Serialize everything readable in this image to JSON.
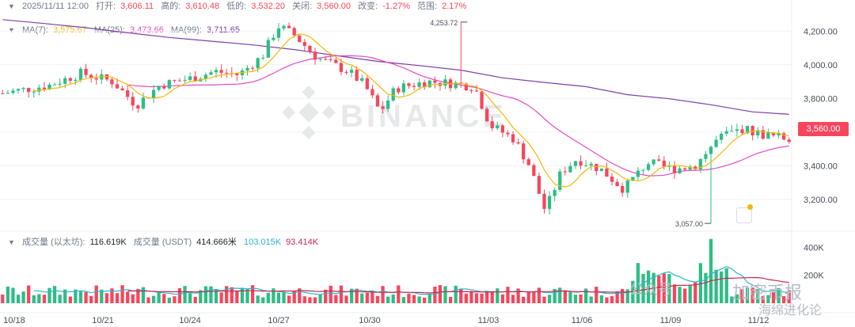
{
  "header": {
    "date": "2025/11/11 12:00",
    "open_label": "打开:",
    "open": "3,606.11",
    "high_label": "高的:",
    "high": "3,610.48",
    "low_label": "低的:",
    "low": "3,532.20",
    "close_label": "关闭:",
    "close": "3,560.00",
    "change_label": "改变:",
    "change": "-1.27%",
    "range_label": "范围:",
    "range": "2.17%"
  },
  "ma": {
    "ma7_label": "MA(7):",
    "ma7": "3,575.67",
    "ma25_label": "MA(25):",
    "ma25": "3,473.66",
    "ma99_label": "MA(99):",
    "ma99": "3,711.65"
  },
  "volume": {
    "label": "成交量 (以太坊):",
    "value": "116.619K",
    "usdt_label": "成交量 (USDT)",
    "usdt_value": "414.666米",
    "ma1": "103.015K",
    "ma2": "93.414K"
  },
  "current_price": "3,560.00",
  "watermark": {
    "brand": "BINANCE",
    "w1": "公众号",
    "w2": "加密币报",
    "w3": "海绵进化论"
  },
  "colors": {
    "up": "#2ebd85",
    "down": "#f6465d",
    "ma7": "#f0b90b",
    "ma25": "#e24cc5",
    "ma99": "#7b3fa8",
    "vol_ma1": "#2ab5c9",
    "vol_ma2": "#c42b4d"
  },
  "chart_data": {
    "type": "candlestick",
    "y_ticks": [
      "4,200.00",
      "4,000.00",
      "3,800.00",
      "3,600.00",
      "3,400.00",
      "3,200.00"
    ],
    "y_tick_values": [
      4200,
      4000,
      3800,
      3600,
      3400,
      3200
    ],
    "ylim": [
      3020,
      4300
    ],
    "vol_ticks": [
      "400K",
      "200K"
    ],
    "vol_tick_values": [
      400000,
      200000
    ],
    "vol_max": 470000,
    "x_labels": [
      "10/18",
      "10/21",
      "10/24",
      "10/27",
      "10/30",
      "11/03",
      "11/06",
      "11/09",
      "11/12"
    ],
    "annotations": [
      {
        "text": "4,253.72",
        "value": 4253.72
      },
      {
        "text": "3,057.00",
        "value": 3057
      }
    ],
    "candles": [],
    "ma99_points": [
      [
        0,
        4268
      ],
      [
        8,
        4245
      ],
      [
        16,
        4220
      ],
      [
        24,
        4190
      ],
      [
        32,
        4162
      ],
      [
        40,
        4140
      ],
      [
        48,
        4118
      ],
      [
        56,
        4090
      ],
      [
        64,
        4055
      ],
      [
        72,
        4020
      ],
      [
        80,
        3995
      ],
      [
        88,
        3968
      ],
      [
        96,
        3922
      ],
      [
        104,
        3895
      ],
      [
        112,
        3870
      ],
      [
        120,
        3822
      ],
      [
        128,
        3798
      ],
      [
        136,
        3762
      ],
      [
        144,
        3720
      ],
      [
        151,
        3705
      ]
    ]
  }
}
